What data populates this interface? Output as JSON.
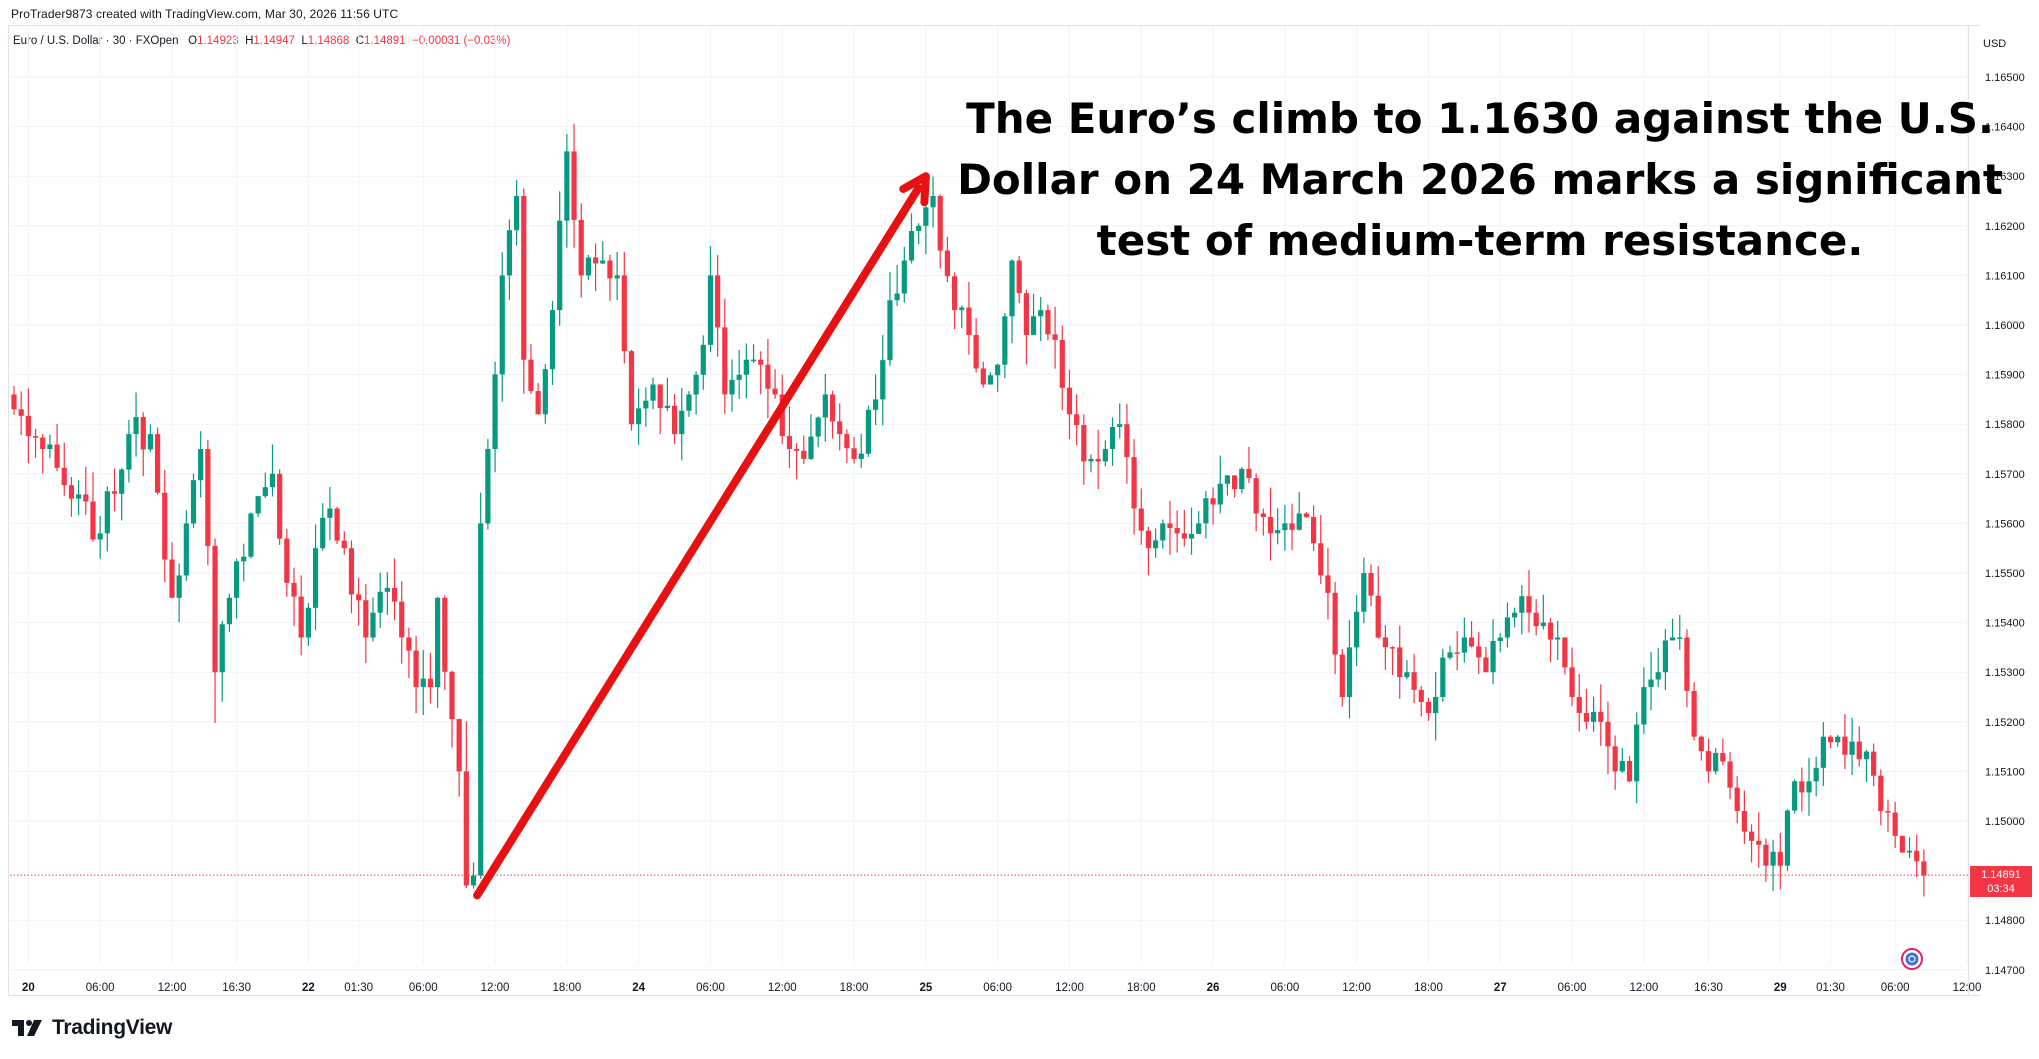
{
  "header": {
    "credit": "ProTrader9873 created with TradingView.com, Mar 30, 2026 11:56 UTC",
    "symbol": "Euro / U.S. Dollar · 30 · FXOpen",
    "ohlc": {
      "o_label": "O",
      "o": "1.14923",
      "h_label": "H",
      "h": "1.14947",
      "l_label": "L",
      "l": "1.14868",
      "c_label": "C",
      "c": "1.14891",
      "change": "−0.00031 (−0.03%)"
    }
  },
  "brand": {
    "name": "TradingView"
  },
  "last_price": {
    "value": "1.14891",
    "countdown": "03:34"
  },
  "colors": {
    "up": "#089981",
    "down": "#f23645",
    "arrow": "#e81010",
    "grid": "#f0f3fa"
  },
  "chart_data": {
    "type": "candlestick",
    "title": "",
    "annotation": "The Euro’s climb to 1.1630 against the U.S. Dollar on 24 March 2026 marks a significant test of medium-term resistance.",
    "annotation_lines": [
      "The Euro’s climb to 1.1630 against the U.S.",
      "Dollar on 24 March 2026 marks a significant",
      "test of medium-term resistance."
    ],
    "currency": "USD",
    "ylim": [
      1.1465,
      1.1665
    ],
    "y_ticks": [
      "1.16500",
      "1.16400",
      "1.16300",
      "1.16200",
      "1.16100",
      "1.16000",
      "1.15900",
      "1.15800",
      "1.15700",
      "1.15600",
      "1.15500",
      "1.15400",
      "1.15300",
      "1.15200",
      "1.15100",
      "1.15000",
      "1.14800",
      "1.14700"
    ],
    "x_ticks": [
      {
        "label": "20",
        "bold": true,
        "i": 2
      },
      {
        "label": "06:00",
        "bold": false,
        "i": 12
      },
      {
        "label": "12:00",
        "bold": false,
        "i": 22
      },
      {
        "label": "16:30",
        "bold": false,
        "i": 31
      },
      {
        "label": "22",
        "bold": true,
        "i": 41
      },
      {
        "label": "01:30",
        "bold": false,
        "i": 48
      },
      {
        "label": "06:00",
        "bold": false,
        "i": 57
      },
      {
        "label": "12:00",
        "bold": false,
        "i": 67
      },
      {
        "label": "18:00",
        "bold": false,
        "i": 77
      },
      {
        "label": "24",
        "bold": true,
        "i": 87
      },
      {
        "label": "06:00",
        "bold": false,
        "i": 97
      },
      {
        "label": "12:00",
        "bold": false,
        "i": 107
      },
      {
        "label": "18:00",
        "bold": false,
        "i": 117
      },
      {
        "label": "25",
        "bold": true,
        "i": 127
      },
      {
        "label": "06:00",
        "bold": false,
        "i": 137
      },
      {
        "label": "12:00",
        "bold": false,
        "i": 147
      },
      {
        "label": "18:00",
        "bold": false,
        "i": 157
      },
      {
        "label": "26",
        "bold": true,
        "i": 167
      },
      {
        "label": "06:00",
        "bold": false,
        "i": 177
      },
      {
        "label": "12:00",
        "bold": false,
        "i": 187
      },
      {
        "label": "18:00",
        "bold": false,
        "i": 197
      },
      {
        "label": "27",
        "bold": true,
        "i": 207
      },
      {
        "label": "06:00",
        "bold": false,
        "i": 217
      },
      {
        "label": "12:00",
        "bold": false,
        "i": 227
      },
      {
        "label": "16:30",
        "bold": false,
        "i": 236
      },
      {
        "label": "29",
        "bold": true,
        "i": 246
      },
      {
        "label": "01:30",
        "bold": false,
        "i": 253
      },
      {
        "label": "06:00",
        "bold": false,
        "i": 262
      },
      {
        "label": "12:00",
        "bold": false,
        "i": 272
      }
    ],
    "anchors": [
      [
        0,
        1.1583
      ],
      [
        4,
        1.1575
      ],
      [
        8,
        1.1565
      ],
      [
        12,
        1.1558
      ],
      [
        16,
        1.1578
      ],
      [
        19,
        1.1578
      ],
      [
        22,
        1.1545
      ],
      [
        24,
        1.156
      ],
      [
        26,
        1.1575
      ],
      [
        28,
        1.153
      ],
      [
        30,
        1.1545
      ],
      [
        33,
        1.1562
      ],
      [
        36,
        1.157
      ],
      [
        38,
        1.1548
      ],
      [
        40,
        1.1537
      ],
      [
        42,
        1.1555
      ],
      [
        44,
        1.1563
      ],
      [
        46,
        1.1555
      ],
      [
        49,
        1.1537
      ],
      [
        52,
        1.1547
      ],
      [
        54,
        1.1537
      ],
      [
        56,
        1.1527
      ],
      [
        58,
        1.1527
      ],
      [
        59,
        1.1545
      ],
      [
        62,
        1.151
      ],
      [
        63,
        1.1487
      ],
      [
        64,
        1.1489
      ],
      [
        65,
        1.156
      ],
      [
        66,
        1.1575
      ],
      [
        68,
        1.161
      ],
      [
        70,
        1.1626
      ],
      [
        71,
        1.1593
      ],
      [
        73,
        1.1582
      ],
      [
        75,
        1.1603
      ],
      [
        77,
        1.1635
      ],
      [
        79,
        1.161
      ],
      [
        82,
        1.1613
      ],
      [
        84,
        1.161
      ],
      [
        86,
        1.158
      ],
      [
        89,
        1.1588
      ],
      [
        92,
        1.1578
      ],
      [
        94,
        1.1586
      ],
      [
        96,
        1.1596
      ],
      [
        97,
        1.161
      ],
      [
        99,
        1.1586
      ],
      [
        102,
        1.1593
      ],
      [
        104,
        1.1592
      ],
      [
        106,
        1.1586
      ],
      [
        108,
        1.1575
      ],
      [
        110,
        1.1573
      ],
      [
        113,
        1.1586
      ],
      [
        115,
        1.1578
      ],
      [
        117,
        1.1573
      ],
      [
        120,
        1.1585
      ],
      [
        122,
        1.1605
      ],
      [
        124,
        1.1613
      ],
      [
        126,
        1.162
      ],
      [
        128,
        1.1626
      ],
      [
        129,
        1.1615
      ],
      [
        131,
        1.1603
      ],
      [
        133,
        1.1598
      ],
      [
        135,
        1.1588
      ],
      [
        137,
        1.1592
      ],
      [
        139,
        1.1613
      ],
      [
        141,
        1.1598
      ],
      [
        143,
        1.1603
      ],
      [
        145,
        1.1597
      ],
      [
        147,
        1.1582
      ],
      [
        150,
        1.1573
      ],
      [
        152,
        1.1575
      ],
      [
        154,
        1.158
      ],
      [
        156,
        1.1563
      ],
      [
        158,
        1.1555
      ],
      [
        160,
        1.156
      ],
      [
        162,
        1.1558
      ],
      [
        165,
        1.156
      ],
      [
        168,
        1.1568
      ],
      [
        171,
        1.1571
      ],
      [
        173,
        1.1562
      ],
      [
        175,
        1.1558
      ],
      [
        177,
        1.156
      ],
      [
        179,
        1.1562
      ],
      [
        181,
        1.1556
      ],
      [
        183,
        1.1546
      ],
      [
        185,
        1.1525
      ],
      [
        186,
        1.1535
      ],
      [
        188,
        1.155
      ],
      [
        190,
        1.1537
      ],
      [
        192,
        1.1535
      ],
      [
        194,
        1.153
      ],
      [
        196,
        1.1524
      ],
      [
        198,
        1.1525
      ],
      [
        200,
        1.1534
      ],
      [
        202,
        1.1537
      ],
      [
        205,
        1.153
      ],
      [
        207,
        1.1537
      ],
      [
        209,
        1.1542
      ],
      [
        211,
        1.1542
      ],
      [
        213,
        1.154
      ],
      [
        215,
        1.1537
      ],
      [
        217,
        1.1525
      ],
      [
        219,
        1.152
      ],
      [
        221,
        1.152
      ],
      [
        223,
        1.151
      ],
      [
        225,
        1.1508
      ],
      [
        227,
        1.1527
      ],
      [
        229,
        1.153
      ],
      [
        231,
        1.1537
      ],
      [
        232,
        1.1537
      ],
      [
        234,
        1.1517
      ],
      [
        236,
        1.151
      ],
      [
        238,
        1.1512
      ],
      [
        240,
        1.1502
      ],
      [
        242,
        1.1496
      ],
      [
        244,
        1.1491
      ],
      [
        246,
        1.1491
      ],
      [
        248,
        1.1508
      ],
      [
        250,
        1.1508
      ],
      [
        252,
        1.1517
      ],
      [
        254,
        1.1517
      ],
      [
        256,
        1.1516
      ],
      [
        258,
        1.1514
      ],
      [
        260,
        1.1502
      ],
      [
        262,
        1.1497
      ],
      [
        264,
        1.1494
      ],
      [
        266,
        1.1489
      ]
    ],
    "current_price": 1.14891,
    "arrow": {
      "from": [
        64.5,
        1.1485
      ],
      "to": [
        127,
        1.163
      ]
    }
  }
}
